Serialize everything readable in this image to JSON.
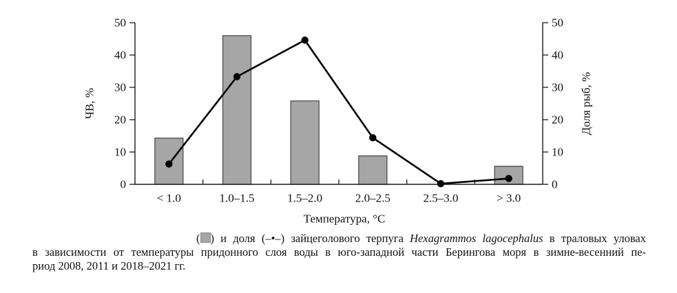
{
  "colors": {
    "bar_fill": "#a6a6a6",
    "bar_stroke": "#4d4d4d",
    "line": "#000000",
    "marker": "#000000",
    "axis": "#1a1a1a",
    "text": "#111111"
  },
  "chart_data": {
    "type": "bar",
    "subtype": "bar+line combo, dual y-axis",
    "categories": [
      "< 1.0",
      "1.0–1.5",
      "1.5–2.0",
      "2.0–2.5",
      "2.5–3.0",
      "> 3.0"
    ],
    "series": [
      {
        "name": "ЧВ (столбцы)",
        "type": "bar",
        "axis": "left",
        "values": [
          14.3,
          46.0,
          25.8,
          8.8,
          0,
          5.6
        ]
      },
      {
        "name": "Доля рыб (линия с маркерами)",
        "type": "line",
        "axis": "right",
        "values": [
          6.3,
          33.3,
          44.6,
          14.4,
          0.2,
          1.8
        ]
      }
    ],
    "xlabel": "Температура, °C",
    "ylabel_left": "ЧВ, %",
    "ylabel_right": "Доля рыб, %",
    "ylim": [
      0,
      50
    ],
    "yticks": [
      0,
      10,
      20,
      30,
      40,
      50
    ],
    "grid": false,
    "legend_position": "in-caption"
  },
  "caption": {
    "line1_parts": [
      {
        "t": "("
      },
      {
        "square": true
      },
      {
        "t": ") и доля (–•–) зайцеголового терпуга "
      },
      {
        "t": "Hexagrammos lagocephalus",
        "i": true
      },
      {
        "t": " в траловых уловах"
      }
    ],
    "line2": "в зависимости от температуры придонного слоя воды в юго-западной части Берингова моря в зимне-весенний пе-",
    "line3": "риод 2008, 2011 и 2018–2021 гг."
  }
}
